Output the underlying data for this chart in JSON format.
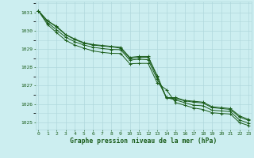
{
  "title": "Graphe pression niveau de la mer (hPa)",
  "background_color": "#cceef0",
  "grid_color": "#b0d8dc",
  "line_color": "#1a5c1a",
  "text_color": "#1a5c1a",
  "x_ticks": [
    0,
    1,
    2,
    3,
    4,
    5,
    6,
    7,
    8,
    9,
    10,
    11,
    12,
    13,
    14,
    15,
    16,
    17,
    18,
    19,
    20,
    21,
    22,
    23
  ],
  "ylim": [
    1024.6,
    1031.6
  ],
  "xlim": [
    -0.3,
    23.3
  ],
  "line1": [
    1031.1,
    1030.55,
    1030.25,
    1029.8,
    1029.55,
    1029.35,
    1029.25,
    1029.2,
    1029.15,
    1029.1,
    1028.55,
    1028.6,
    1028.6,
    1027.55,
    1026.35,
    1026.35,
    1026.2,
    1026.15,
    1026.1,
    1025.85,
    1025.8,
    1025.75,
    1025.35,
    1025.15
  ],
  "line2": [
    1031.1,
    1030.55,
    1030.2,
    1029.78,
    1029.52,
    1029.32,
    1029.22,
    1029.17,
    1029.12,
    1029.05,
    1028.5,
    1028.55,
    1028.55,
    1027.48,
    1026.32,
    1026.3,
    1026.17,
    1026.1,
    1026.05,
    1025.8,
    1025.75,
    1025.7,
    1025.28,
    1025.1
  ],
  "line3": [
    1031.1,
    1030.45,
    1030.05,
    1029.65,
    1029.4,
    1029.22,
    1029.1,
    1029.03,
    1028.98,
    1028.97,
    1028.4,
    1028.45,
    1028.42,
    1027.35,
    1026.35,
    1026.22,
    1026.07,
    1025.93,
    1025.9,
    1025.66,
    1025.62,
    1025.58,
    1025.12,
    1024.95
  ],
  "line4": [
    1031.1,
    1030.35,
    1029.9,
    1029.48,
    1029.22,
    1029.05,
    1028.9,
    1028.82,
    1028.77,
    1028.76,
    1028.2,
    1028.22,
    1028.22,
    1027.15,
    1026.78,
    1026.08,
    1025.93,
    1025.78,
    1025.7,
    1025.52,
    1025.48,
    1025.45,
    1024.98,
    1024.82
  ]
}
